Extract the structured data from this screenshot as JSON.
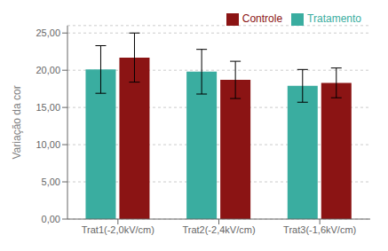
{
  "chart_data": {
    "type": "bar",
    "categories": [
      "Trat1(-2,0kV/cm)",
      "Trat2(-2,4kV/cm)",
      "Trat3(-1,6kV/cm)"
    ],
    "series": [
      {
        "name": "Tratamento",
        "color": "#3aada0",
        "values": [
          20.1,
          19.8,
          17.9
        ],
        "errors": [
          3.2,
          3.0,
          2.2
        ]
      },
      {
        "name": "Controle",
        "color": "#8b1414",
        "values": [
          21.7,
          18.7,
          18.3
        ],
        "errors": [
          3.3,
          2.5,
          2.0
        ]
      }
    ],
    "ylabel": "Variação da cor",
    "ylim": [
      0,
      26
    ],
    "yticks": [
      {
        "value": 0,
        "label": "0,00"
      },
      {
        "value": 5,
        "label": "5,00"
      },
      {
        "value": 10,
        "label": "10,00"
      },
      {
        "value": 15,
        "label": "15,00"
      },
      {
        "value": 20,
        "label": "20,00"
      },
      {
        "value": 25,
        "label": "25,00"
      }
    ],
    "grid": true,
    "legend": "upper right"
  }
}
